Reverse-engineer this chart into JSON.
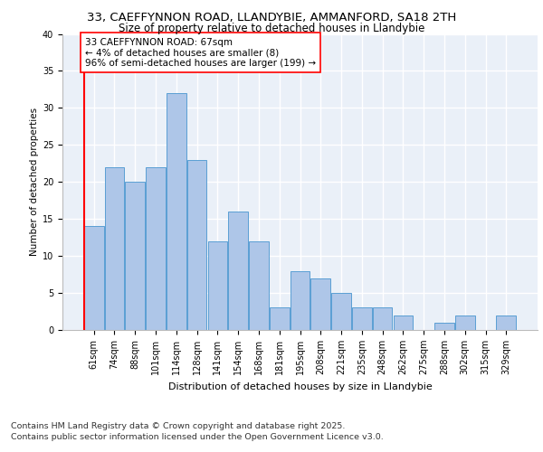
{
  "title_line1": "33, CAEFFYNNON ROAD, LLANDYBIE, AMMANFORD, SA18 2TH",
  "title_line2": "Size of property relative to detached houses in Llandybie",
  "xlabel": "Distribution of detached houses by size in Llandybie",
  "ylabel": "Number of detached properties",
  "bar_labels": [
    "61sqm",
    "74sqm",
    "88sqm",
    "101sqm",
    "114sqm",
    "128sqm",
    "141sqm",
    "154sqm",
    "168sqm",
    "181sqm",
    "195sqm",
    "208sqm",
    "221sqm",
    "235sqm",
    "248sqm",
    "262sqm",
    "275sqm",
    "288sqm",
    "302sqm",
    "315sqm",
    "329sqm"
  ],
  "bar_values": [
    14,
    22,
    20,
    22,
    32,
    23,
    12,
    16,
    12,
    3,
    8,
    7,
    5,
    3,
    3,
    2,
    0,
    1,
    2,
    0,
    2
  ],
  "bar_color": "#aec6e8",
  "bar_edge_color": "#5a9fd4",
  "annotation_text": "33 CAEFFYNNON ROAD: 67sqm\n← 4% of detached houses are smaller (8)\n96% of semi-detached houses are larger (199) →",
  "redline_x": -0.48,
  "ylim": [
    0,
    40
  ],
  "yticks": [
    0,
    5,
    10,
    15,
    20,
    25,
    30,
    35,
    40
  ],
  "bg_color": "#eaf0f8",
  "grid_color": "#ffffff",
  "footer_text": "Contains HM Land Registry data © Crown copyright and database right 2025.\nContains public sector information licensed under the Open Government Licence v3.0.",
  "title_fontsize": 9.5,
  "subtitle_fontsize": 8.5,
  "annotation_fontsize": 7.5,
  "footer_fontsize": 6.8,
  "ylabel_fontsize": 7.5,
  "xlabel_fontsize": 8.0,
  "tick_fontsize": 7.0
}
